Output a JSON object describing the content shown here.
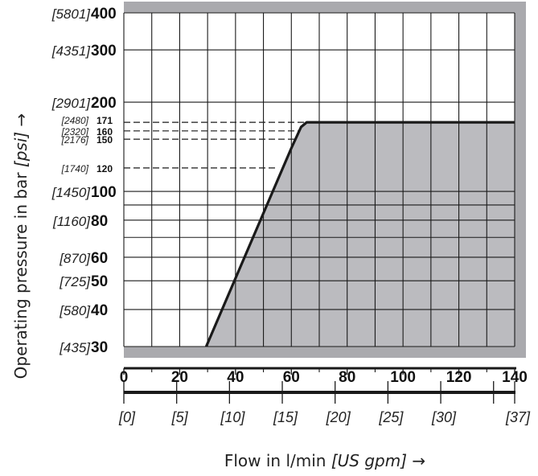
{
  "chart_data": {
    "type": "area",
    "xlabel_main": "Flow in l/min",
    "xlabel_unit": "[US gpm]",
    "xlabel_arrow": "→",
    "ylabel_main": "Operating pressure in bar",
    "ylabel_unit": "[psi]",
    "ylabel_arrow": "→",
    "xlim": [
      0,
      140
    ],
    "ylim": [
      30,
      400
    ],
    "y_scale": "log",
    "x_ticks": [
      {
        "value": 0,
        "label": "0"
      },
      {
        "value": 20,
        "label": "20"
      },
      {
        "value": 40,
        "label": "40"
      },
      {
        "value": 60,
        "label": "60"
      },
      {
        "value": 80,
        "label": "80"
      },
      {
        "value": 100,
        "label": "100"
      },
      {
        "value": 120,
        "label": "120"
      },
      {
        "value": 140,
        "label": "140"
      }
    ],
    "x_secondary_ticks": [
      {
        "value": 0,
        "label": "[0]"
      },
      {
        "value": 5,
        "label": "[5]"
      },
      {
        "value": 10,
        "label": "[10]"
      },
      {
        "value": 15,
        "label": "[15]"
      },
      {
        "value": 20,
        "label": "[20]"
      },
      {
        "value": 25,
        "label": "[25]"
      },
      {
        "value": 30,
        "label": "[30]"
      },
      {
        "value": 37,
        "label": "[37]"
      }
    ],
    "y_ticks": [
      {
        "value": 400,
        "label": "400",
        "psi": "[5801]",
        "size": "large"
      },
      {
        "value": 300,
        "label": "300",
        "psi": "[4351]",
        "size": "large"
      },
      {
        "value": 200,
        "label": "200",
        "psi": "[2901]",
        "size": "large"
      },
      {
        "value": 171,
        "label": "171",
        "psi": "[2480]",
        "size": "small"
      },
      {
        "value": 160,
        "label": "160",
        "psi": "[2320]",
        "size": "small"
      },
      {
        "value": 150,
        "label": "150",
        "psi": "[2176]",
        "size": "small"
      },
      {
        "value": 120,
        "label": "120",
        "psi": "[1740]",
        "size": "small"
      },
      {
        "value": 100,
        "label": "100",
        "psi": "[1450]",
        "size": "large"
      },
      {
        "value": 80,
        "label": "80",
        "psi": "[1160]",
        "size": "large"
      },
      {
        "value": 60,
        "label": "60",
        "psi": "[870]",
        "size": "large"
      },
      {
        "value": 50,
        "label": "50",
        "psi": "[725]",
        "size": "large"
      },
      {
        "value": 40,
        "label": "40",
        "psi": "[580]",
        "size": "large"
      },
      {
        "value": 30,
        "label": "30",
        "psi": "[435]",
        "size": "large"
      }
    ],
    "grid_x": [
      0,
      10,
      20,
      30,
      40,
      50,
      60,
      70,
      80,
      90,
      100,
      110,
      120,
      130,
      140
    ],
    "grid_y": [
      30,
      40,
      50,
      60,
      70,
      80,
      90,
      100,
      200,
      300,
      400
    ],
    "dashed_levels": [
      171,
      160,
      150,
      120
    ],
    "envelope": [
      {
        "x": 29.5,
        "y": 30
      },
      {
        "x": 60,
        "y": 140
      },
      {
        "x": 63.5,
        "y": 165
      },
      {
        "x": 65.5,
        "y": 171
      },
      {
        "x": 140,
        "y": 171
      }
    ],
    "colors": {
      "fill": "#bbbbbf",
      "border": "#aaaaae",
      "line": "#1a1a1a",
      "grid": "#1a1a1a"
    }
  }
}
